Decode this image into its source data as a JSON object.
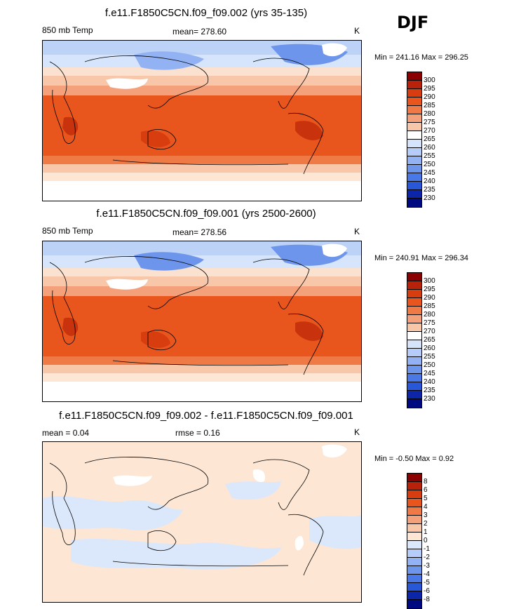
{
  "season": "DJF",
  "panels": [
    {
      "title": "f.e11.F1850C5CN.f09_f09.002 (yrs 35-135)",
      "left_label": "850 mb Temp",
      "center_label": "mean= 278.60",
      "units": "K",
      "minmax": "Min = 241.16 Max = 296.25"
    },
    {
      "title": "f.e11.F1850C5CN.f09_f09.001 (yrs 2500-2600)",
      "left_label": "850 mb Temp",
      "center_label": "mean= 278.56",
      "units": "K",
      "minmax": "Min = 240.91 Max = 296.34"
    },
    {
      "title": "f.e11.F1850C5CN.f09_f09.002 - f.e11.F1850C5CN.f09_f09.001",
      "left_label": "mean =   0.04",
      "center_label": "rmse =   0.16",
      "units": "K",
      "minmax": "Min =  -0.50 Max =   0.92"
    }
  ],
  "chart_data": [
    {
      "type": "heatmap",
      "title": "f.e11.F1850C5CN.f09_f09.002 (yrs 35-135)",
      "variable": "850 mb Temp",
      "units": "K",
      "mean": 278.6,
      "min": 241.16,
      "max": 296.25,
      "colorbar_levels": [
        "300",
        "295",
        "290",
        "285",
        "280",
        "275",
        "270",
        "265",
        "260",
        "255",
        "250",
        "245",
        "240",
        "235",
        "230"
      ],
      "colors": [
        "#8b0000",
        "#b8220a",
        "#d83d10",
        "#e8561e",
        "#f07a45",
        "#f4a07a",
        "#f8c7aa",
        "#ffffff",
        "#d5e4fb",
        "#b5cdf8",
        "#93b2f3",
        "#6d95ec",
        "#4a78e6",
        "#2857d8",
        "#0d25a8",
        "#000a80"
      ]
    },
    {
      "type": "heatmap",
      "title": "f.e11.F1850C5CN.f09_f09.001 (yrs 2500-2600)",
      "variable": "850 mb Temp",
      "units": "K",
      "mean": 278.56,
      "min": 240.91,
      "max": 296.34,
      "colorbar_levels": [
        "300",
        "295",
        "290",
        "285",
        "280",
        "275",
        "270",
        "265",
        "260",
        "255",
        "250",
        "245",
        "240",
        "235",
        "230"
      ],
      "colors": [
        "#8b0000",
        "#b8220a",
        "#d83d10",
        "#e8561e",
        "#f07a45",
        "#f4a07a",
        "#f8c7aa",
        "#ffffff",
        "#d5e4fb",
        "#b5cdf8",
        "#93b2f3",
        "#6d95ec",
        "#4a78e6",
        "#2857d8",
        "#0d25a8",
        "#000a80"
      ]
    },
    {
      "type": "heatmap",
      "title": "f.e11.F1850C5CN.f09_f09.002 - f.e11.F1850C5CN.f09_f09.001",
      "units": "K",
      "mean": 0.04,
      "rmse": 0.16,
      "min": -0.5,
      "max": 0.92,
      "colorbar_levels": [
        "8",
        "6",
        "5",
        "4",
        "3",
        "2",
        "1",
        "0",
        "-1",
        "-2",
        "-3",
        "-4",
        "-5",
        "-6",
        "-8"
      ],
      "colors": [
        "#8b0000",
        "#b8220a",
        "#d83d10",
        "#e8561e",
        "#f07a45",
        "#f4a07a",
        "#f8c7aa",
        "#fde6d4",
        "#dbe8fb",
        "#b5cdf8",
        "#93b2f3",
        "#6d95ec",
        "#4a78e6",
        "#2857d8",
        "#0d25a8",
        "#000a80"
      ]
    }
  ]
}
